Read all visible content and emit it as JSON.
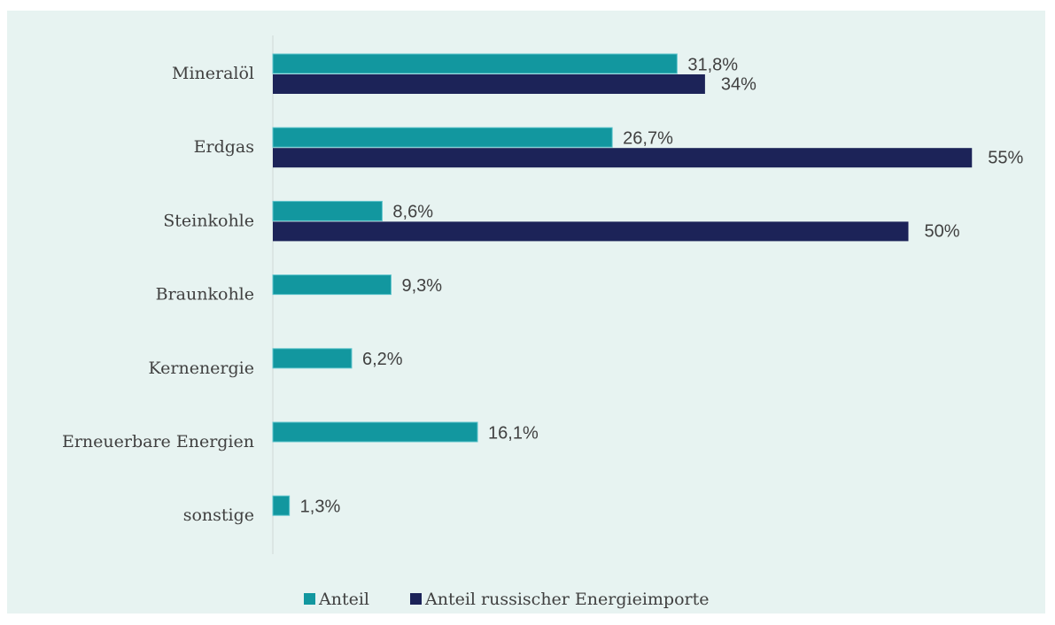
{
  "chart_data": {
    "type": "bar",
    "orientation": "horizontal",
    "categories": [
      "Mineralöl",
      "Erdgas",
      "Steinkohle",
      "Braunkohle",
      "Kernenergie",
      "Erneuerbare Energien",
      "sonstige"
    ],
    "series": [
      {
        "name": "Anteil",
        "color": "#12979f",
        "values": [
          31.8,
          26.7,
          8.6,
          9.3,
          6.2,
          16.1,
          1.3
        ],
        "value_labels": [
          "31,8%",
          "26,7%",
          "8,6%",
          "9,3%",
          "6,2%",
          "16,1%",
          "1,3%"
        ]
      },
      {
        "name": "Anteil russischer Energieimporte",
        "color": "#1c2358",
        "values": [
          34,
          55,
          50,
          null,
          null,
          null,
          null
        ],
        "value_labels": [
          "34%",
          "55%",
          "50%",
          null,
          null,
          null,
          null
        ]
      }
    ],
    "legend": "bottom"
  }
}
